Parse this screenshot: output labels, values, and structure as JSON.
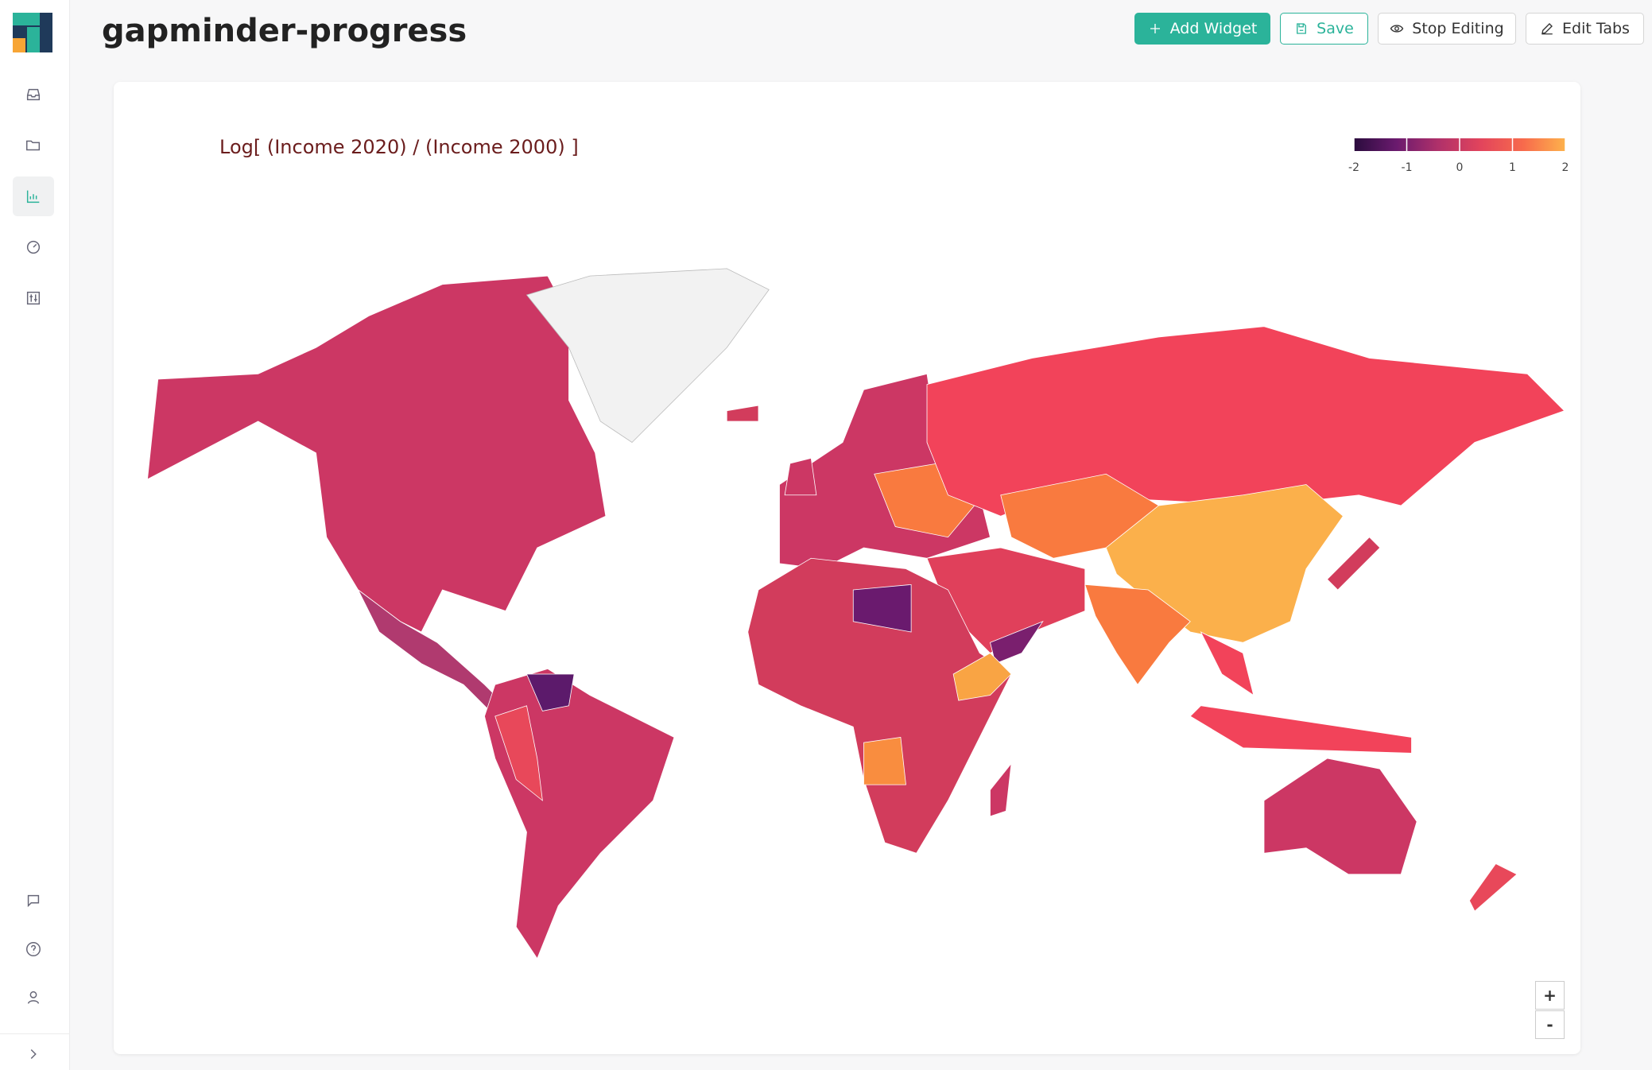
{
  "header": {
    "title": "gapminder-progress"
  },
  "toolbar": {
    "buttons": [
      "Add Widget",
      "Save",
      "Stop Editing",
      "Edit Tabs"
    ]
  },
  "map_controls": [
    "+",
    "-"
  ],
  "chart_data": {
    "type": "choropleth",
    "title": "Log[ (Income 2020) / (Income 2000) ]",
    "colorbar": {
      "lim": [
        -2,
        2
      ],
      "ticks": [
        -2,
        -1,
        0,
        1,
        2
      ],
      "colors": [
        "#2a0c3d",
        "#6a1a6e",
        "#b0316a",
        "#e2445c",
        "#f76a4c",
        "#fdb24c"
      ]
    }
  }
}
